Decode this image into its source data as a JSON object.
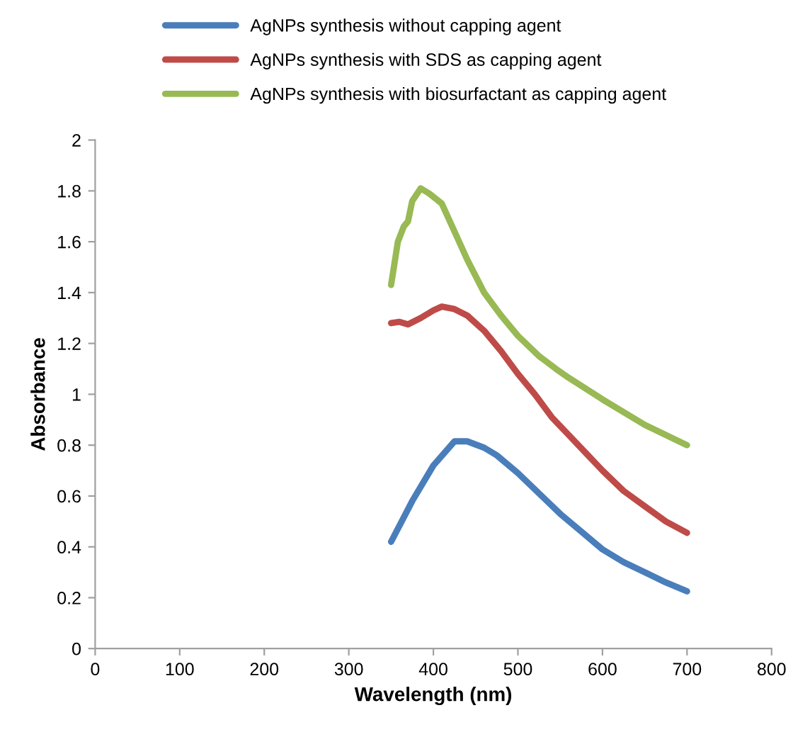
{
  "chart_data": {
    "type": "line",
    "xlabel": "Wavelength (nm)",
    "ylabel": "Absorbance",
    "xlim": [
      0,
      800
    ],
    "xticks": [
      0,
      100,
      200,
      300,
      400,
      500,
      600,
      700,
      800
    ],
    "ylim": [
      0,
      2
    ],
    "yticks": [
      0,
      0.2,
      0.4,
      0.6,
      0.8,
      1,
      1.2,
      1.4,
      1.6,
      1.8,
      2
    ],
    "grid": false,
    "legend": "top",
    "marker": "none",
    "line_style": "solid",
    "series": [
      {
        "name": "AgNPs synthesis without capping agent",
        "color": "#4a7ebb",
        "x": [
          350,
          375,
          400,
          425,
          440,
          460,
          475,
          500,
          525,
          550,
          575,
          600,
          625,
          650,
          675,
          700
        ],
        "values": [
          0.42,
          0.58,
          0.72,
          0.815,
          0.815,
          0.79,
          0.76,
          0.69,
          0.61,
          0.53,
          0.46,
          0.39,
          0.34,
          0.3,
          0.26,
          0.225
        ]
      },
      {
        "name": "AgNPs synthesis with SDS as capping agent",
        "color": "#be4b48",
        "x": [
          350,
          360,
          370,
          385,
          400,
          410,
          425,
          440,
          460,
          480,
          500,
          520,
          540,
          560,
          580,
          600,
          625,
          650,
          675,
          700
        ],
        "values": [
          1.28,
          1.285,
          1.275,
          1.3,
          1.33,
          1.345,
          1.335,
          1.31,
          1.25,
          1.17,
          1.08,
          1.0,
          0.91,
          0.84,
          0.77,
          0.7,
          0.62,
          0.56,
          0.5,
          0.455
        ]
      },
      {
        "name": "AgNPs synthesis with biosurfactant as capping agent",
        "color": "#98b954",
        "x": [
          350,
          358,
          365,
          370,
          375,
          385,
          395,
          410,
          425,
          440,
          460,
          480,
          500,
          525,
          545,
          560,
          600,
          650,
          700
        ],
        "values": [
          1.43,
          1.6,
          1.66,
          1.68,
          1.76,
          1.81,
          1.79,
          1.75,
          1.64,
          1.53,
          1.4,
          1.31,
          1.23,
          1.15,
          1.1,
          1.065,
          0.98,
          0.88,
          0.8
        ]
      }
    ]
  }
}
